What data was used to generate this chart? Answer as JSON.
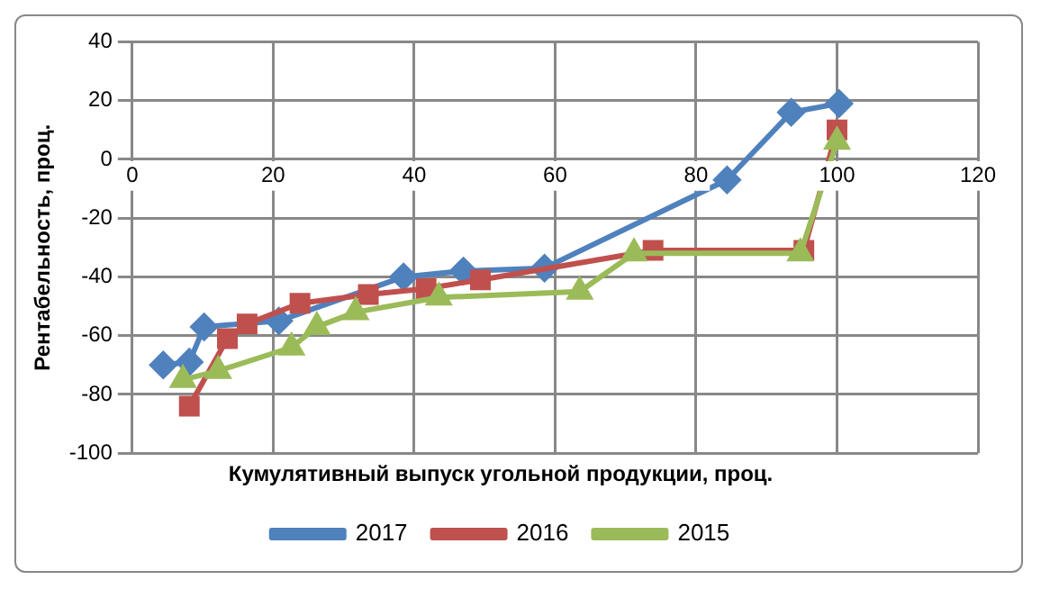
{
  "chart_data": {
    "type": "line",
    "xlabel": "Кумулятивный выпуск угольной продукции, проц.",
    "ylabel": "Рентабельность, проц.",
    "xlim": [
      0,
      120
    ],
    "xticks": [
      0,
      20,
      40,
      60,
      80,
      100,
      120
    ],
    "ylim": [
      -100,
      40
    ],
    "yticks": [
      -100,
      -80,
      -60,
      -40,
      -20,
      0,
      20,
      40
    ],
    "grid": true,
    "legend": "bottom",
    "line_style": "solid",
    "series": [
      {
        "name": "2017",
        "color": "#4f81bd",
        "marker": "diamond",
        "x": [
          4.4,
          8.1,
          10.2,
          20.8,
          38.5,
          47,
          58.5,
          84.4,
          93.5,
          100.3
        ],
        "values": [
          -70,
          -69,
          -57,
          -55,
          -40,
          -38,
          -37,
          -7,
          16,
          19
        ]
      },
      {
        "name": "2016",
        "color": "#c0504d",
        "marker": "square",
        "x": [
          8.1,
          13.5,
          16.3,
          23.8,
          33.5,
          41.7,
          49.4,
          73.9,
          95.3,
          100
        ],
        "values": [
          -84,
          -61,
          -56,
          -49,
          -46,
          -44,
          -41,
          -31,
          -31,
          10
        ]
      },
      {
        "name": "2015",
        "color": "#9bbb59",
        "marker": "triangle",
        "x": [
          7.2,
          12.2,
          22.6,
          26.2,
          31.7,
          43.5,
          63.5,
          71.2,
          94.8,
          100
        ],
        "values": [
          -75,
          -72,
          -64,
          -57,
          -52,
          -47,
          -45,
          -32,
          -32,
          6
        ]
      }
    ]
  }
}
